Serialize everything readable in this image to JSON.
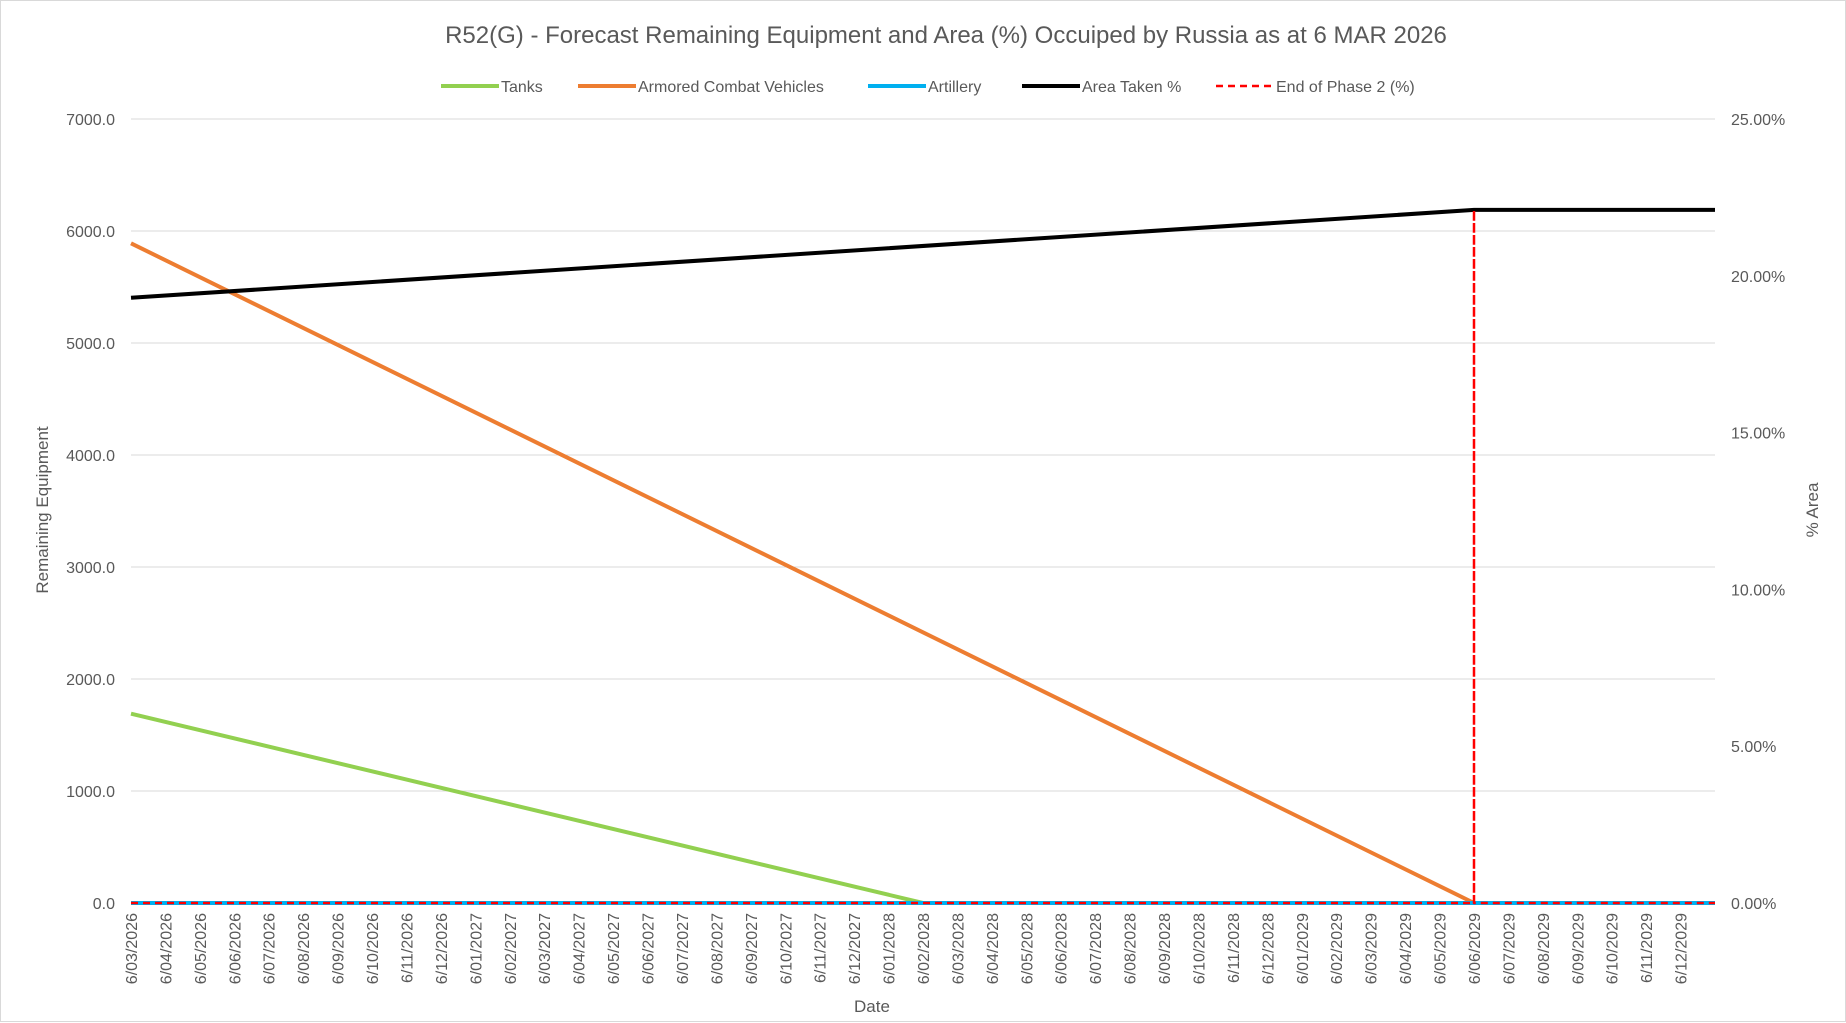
{
  "chart_data": {
    "type": "line",
    "title": "R52(G) - Forecast Remaining Equipment and Area (%) Occuiped by Russia as at 6 MAR 2026",
    "xlabel": "Date",
    "ylabel": "Remaining Equipment",
    "y2label": "% Area",
    "ylim": [
      0,
      7000
    ],
    "y2lim": [
      0,
      25
    ],
    "yticks": [
      "0.0",
      "1000.0",
      "2000.0",
      "3000.0",
      "4000.0",
      "5000.0",
      "6000.0",
      "7000.0"
    ],
    "y2ticks": [
      "0.00%",
      "5.00%",
      "10.00%",
      "15.00%",
      "20.00%",
      "25.00%"
    ],
    "grid": true,
    "legend_position": "top",
    "categories": [
      "6/03/2026",
      "6/04/2026",
      "6/05/2026",
      "6/06/2026",
      "6/07/2026",
      "6/08/2026",
      "6/09/2026",
      "6/10/2026",
      "6/11/2026",
      "6/12/2026",
      "6/01/2027",
      "6/02/2027",
      "6/03/2027",
      "6/04/2027",
      "6/05/2027",
      "6/06/2027",
      "6/07/2027",
      "6/08/2027",
      "6/09/2027",
      "6/10/2027",
      "6/11/2027",
      "6/12/2027",
      "6/01/2028",
      "6/02/2028",
      "6/03/2028",
      "6/04/2028",
      "6/05/2028",
      "6/06/2028",
      "6/07/2028",
      "6/08/2028",
      "6/09/2028",
      "6/10/2028",
      "6/11/2028",
      "6/12/2028",
      "6/01/2029",
      "6/02/2029",
      "6/03/2029",
      "6/04/2029",
      "6/05/2029",
      "6/06/2029",
      "6/07/2029",
      "6/08/2029",
      "6/09/2029",
      "6/10/2029",
      "6/11/2029",
      "6/12/2029"
    ],
    "x_end": "6/01/2030",
    "series": [
      {
        "name": "Tanks",
        "color": "#92d050",
        "axis": "left",
        "style": "solid",
        "points": [
          [
            "6/03/2026",
            1690
          ],
          [
            "6/02/2028",
            0
          ],
          [
            "6/01/2030",
            0
          ]
        ]
      },
      {
        "name": "Armored Combat Vehicles",
        "color": "#ed7d31",
        "axis": "left",
        "style": "solid",
        "points": [
          [
            "6/03/2026",
            5890
          ],
          [
            "6/06/2029",
            0
          ],
          [
            "6/01/2030",
            0
          ]
        ]
      },
      {
        "name": "Artillery",
        "color": "#00b0f0",
        "axis": "left",
        "style": "solid",
        "points": [
          [
            "6/03/2026",
            0
          ],
          [
            "6/01/2030",
            0
          ]
        ]
      },
      {
        "name": "Area Taken %",
        "color": "#000000",
        "axis": "right",
        "style": "solid",
        "points": [
          [
            "6/03/2026",
            19.3
          ],
          [
            "6/06/2029",
            22.1
          ],
          [
            "6/01/2030",
            22.1
          ]
        ]
      },
      {
        "name": "End of Phase 2 (%)",
        "color": "#ff0000",
        "axis": "right",
        "style": "dashed",
        "points": [
          [
            "6/03/2026",
            0
          ],
          [
            "6/06/2029",
            0
          ],
          [
            "6/06/2029",
            22.1
          ],
          [
            "6/06/2029",
            0
          ],
          [
            "6/01/2030",
            0
          ]
        ]
      }
    ]
  }
}
